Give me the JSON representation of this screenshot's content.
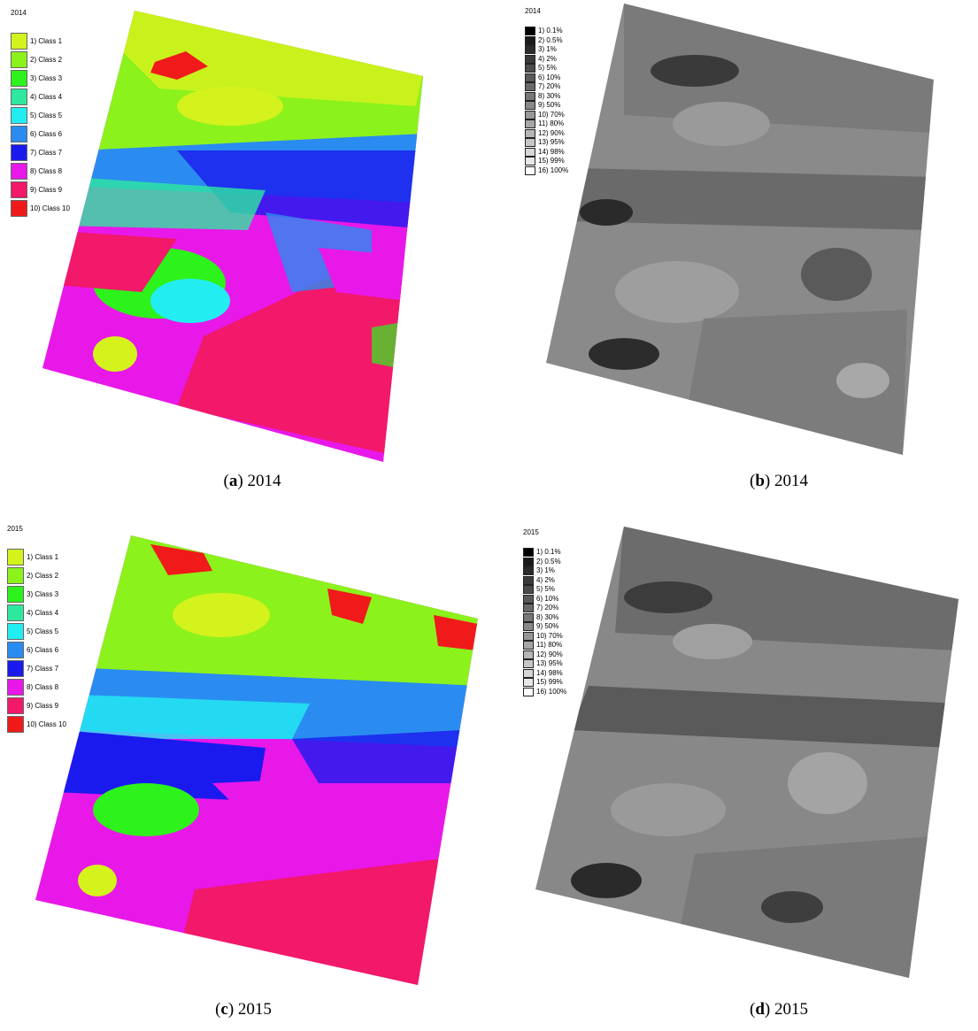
{
  "colors": {
    "class_1": "#d4f21c",
    "class_2": "#8cf21c",
    "class_3": "#2ef21c",
    "class_4": "#2ee8a0",
    "class_5": "#22eef2",
    "class_6": "#2a8cf0",
    "class_7": "#1a1aee",
    "class_8": "#e818e8",
    "class_9": "#f2186a",
    "class_10": "#f01a1a"
  },
  "class_legend_labels": [
    "1) Class 1",
    "2) Class 2",
    "3) Class 3",
    "4) Class 4",
    "5) Class 5",
    "6) Class 6",
    "7) Class 7",
    "8) Class 8",
    "9) Class 9",
    "10) Class 10"
  ],
  "gray_legend_labels": [
    "1) 0.1%",
    "2) 0.5%",
    "3) 1%",
    "4) 2%",
    "5) 5%",
    "6) 10%",
    "7) 20%",
    "8) 30%",
    "9) 50%",
    "10) 70%",
    "11) 80%",
    "12) 90%",
    "13) 95%",
    "14) 98%",
    "15) 99%",
    "16) 100%"
  ],
  "gray_legend_colors": [
    "#000000",
    "#1a1a1a",
    "#2b2b2b",
    "#3b3b3b",
    "#4b4b4b",
    "#5a5a5a",
    "#696969",
    "#787878",
    "#888888",
    "#979797",
    "#a6a6a6",
    "#b6b6b6",
    "#c6c6c6",
    "#d6d6d6",
    "#e8e8e8",
    "#ffffff"
  ],
  "panels": {
    "a": {
      "year": "2014",
      "caption_letter": "a",
      "caption_year": "2014"
    },
    "b": {
      "year": "2014",
      "caption_letter": "b",
      "caption_year": "2014"
    },
    "c": {
      "year": "2015",
      "caption_letter": "c",
      "caption_year": "2015"
    },
    "d": {
      "year": "2015",
      "caption_letter": "d",
      "caption_year": "2015"
    }
  }
}
